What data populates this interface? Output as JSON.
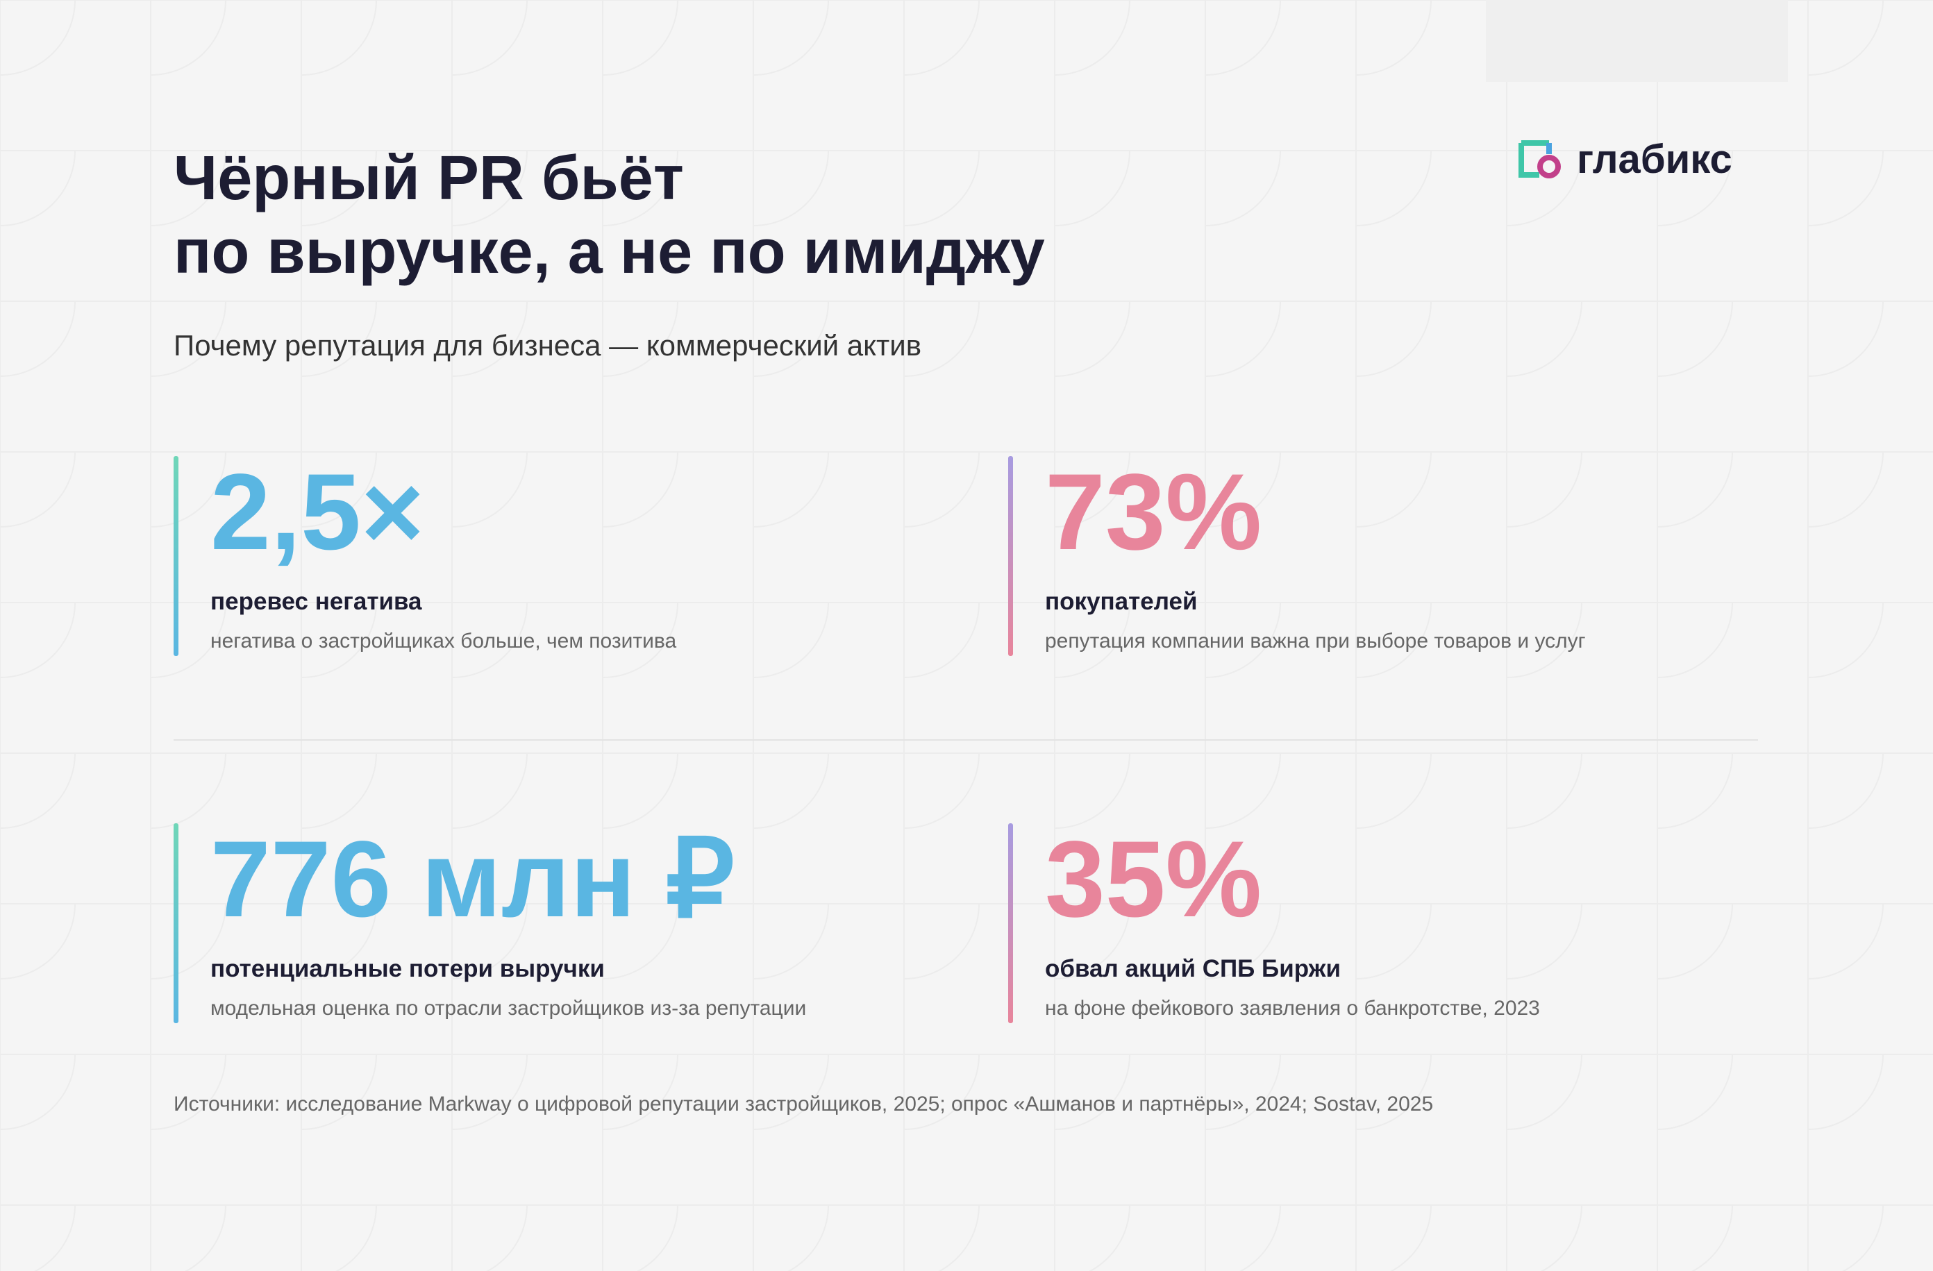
{
  "header": {
    "title_line1": "Чёрный PR бьёт",
    "title_line2": "по выручке, а не по имиджу",
    "subtitle": "Почему репутация для бизнеса — коммерческий актив",
    "logo": "глабикс"
  },
  "stats": [
    {
      "value": "2,5×",
      "label": "перевес негатива",
      "description": "негатива о застройщиках больше, чем позитива"
    },
    {
      "value": "73%",
      "label": "покупателей",
      "description": "репутация компании важна при выборе товаров и услуг"
    },
    {
      "value": "776 млн ₽",
      "label": "потенциальные потери выручки",
      "description": "модельная оценка по отрасли застройщиков из-за репутации"
    },
    {
      "value": "35%",
      "label": "обвал акций СПБ Биржи",
      "description": "на фоне фейкового заявления о банкротстве, 2023"
    }
  ],
  "sources": "Источники: исследование Markway о цифровой репутации застройщиков, 2025; опрос «Ашманов и партнёры», 2024; Sostav, 2025"
}
